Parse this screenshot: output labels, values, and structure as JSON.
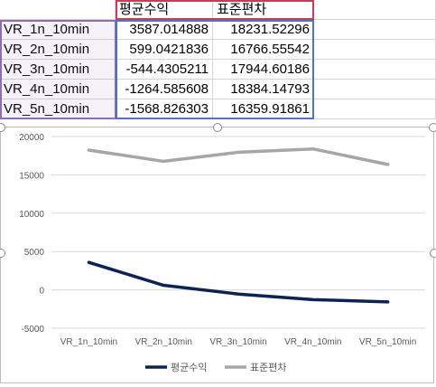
{
  "sheet": {
    "headers": [
      "평균수익",
      "표준편차"
    ],
    "rows": [
      {
        "name": "VR_1n_10min",
        "mean": "3587.014888",
        "std": "18231.52296"
      },
      {
        "name": "VR_2n_10min",
        "mean": "599.0421836",
        "std": "16766.55542"
      },
      {
        "name": "VR_3n_10min",
        "mean": "-544.4305211",
        "std": "17944.60186"
      },
      {
        "name": "VR_4n_10min",
        "mean": "-1264.585608",
        "std": "18384.14793"
      },
      {
        "name": "VR_5n_10min",
        "mean": "-1568.826303",
        "std": "16359.91861"
      }
    ]
  },
  "chart_data": {
    "type": "line",
    "categories": [
      "VR_1n_10min",
      "VR_2n_10min",
      "VR_3n_10min",
      "VR_4n_10min",
      "VR_5n_10min"
    ],
    "series": [
      {
        "name": "평균수익",
        "values": [
          3587.014888,
          599.0421836,
          -544.4305211,
          -1264.585608,
          -1568.826303
        ],
        "color": "#0b2454"
      },
      {
        "name": "표준편차",
        "values": [
          18231.52296,
          16766.55542,
          17944.60186,
          18384.14793,
          16359.91861
        ],
        "color": "#a6a6a6"
      }
    ],
    "yticks": [
      "20000",
      "15000",
      "10000",
      "5000",
      "0",
      "-5000"
    ],
    "ylim": [
      -5000,
      20000
    ],
    "grid": true,
    "legend": "bottom"
  }
}
